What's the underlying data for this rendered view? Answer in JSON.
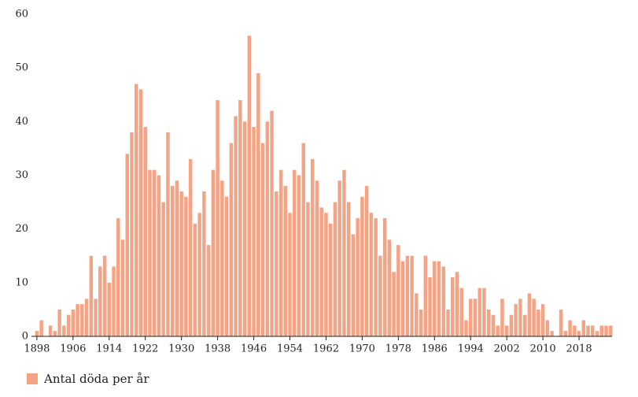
{
  "chart_data": {
    "type": "bar",
    "x": [
      1898,
      1899,
      1900,
      1901,
      1902,
      1903,
      1904,
      1905,
      1906,
      1907,
      1908,
      1909,
      1910,
      1911,
      1912,
      1913,
      1914,
      1915,
      1916,
      1917,
      1918,
      1919,
      1920,
      1921,
      1922,
      1923,
      1924,
      1925,
      1926,
      1927,
      1928,
      1929,
      1930,
      1931,
      1932,
      1933,
      1934,
      1935,
      1936,
      1937,
      1938,
      1939,
      1940,
      1941,
      1942,
      1943,
      1944,
      1945,
      1946,
      1947,
      1948,
      1949,
      1950,
      1951,
      1952,
      1953,
      1954,
      1955,
      1956,
      1957,
      1958,
      1959,
      1960,
      1961,
      1962,
      1963,
      1964,
      1965,
      1966,
      1967,
      1968,
      1969,
      1970,
      1971,
      1972,
      1973,
      1974,
      1975,
      1976,
      1977,
      1978,
      1979,
      1980,
      1981,
      1982,
      1983,
      1984,
      1985,
      1986,
      1987,
      1988,
      1989,
      1990,
      1991,
      1992,
      1993,
      1994,
      1995,
      1996,
      1997,
      1998,
      1999,
      2000,
      2001,
      2002,
      2003,
      2004,
      2005,
      2006,
      2007,
      2008,
      2009,
      2010,
      2011,
      2012,
      2013,
      2014,
      2015,
      2016,
      2017,
      2018,
      2019,
      2020,
      2021,
      2022,
      2023,
      2024,
      2025
    ],
    "series": [
      {
        "name": "Antal döda per år",
        "color": "#f4a485",
        "values": [
          1,
          3,
          0,
          2,
          1,
          5,
          2,
          4,
          5,
          6,
          6,
          7,
          15,
          7,
          13,
          15,
          10,
          13,
          22,
          18,
          34,
          38,
          47,
          46,
          39,
          31,
          31,
          30,
          25,
          38,
          28,
          29,
          27,
          26,
          33,
          21,
          23,
          27,
          17,
          31,
          44,
          29,
          26,
          36,
          41,
          44,
          40,
          56,
          39,
          49,
          36,
          40,
          42,
          27,
          31,
          28,
          23,
          31,
          30,
          36,
          25,
          33,
          29,
          24,
          23,
          21,
          25,
          29,
          31,
          25,
          19,
          22,
          26,
          28,
          23,
          22,
          15,
          22,
          18,
          12,
          17,
          14,
          15,
          15,
          8,
          5,
          15,
          11,
          14,
          14,
          13,
          5,
          11,
          12,
          9,
          3,
          7,
          7,
          9,
          9,
          5,
          4,
          2,
          7,
          2,
          4,
          6,
          7,
          4,
          8,
          7,
          5,
          6,
          3,
          1,
          0,
          5,
          1,
          3,
          2,
          1,
          3,
          2,
          2,
          1,
          2,
          2,
          2
        ]
      }
    ],
    "xlim": [
      1896.8,
      2025.3
    ],
    "xticks": [
      1898,
      1906,
      1914,
      1922,
      1930,
      1938,
      1946,
      1954,
      1962,
      1970,
      1978,
      1986,
      1994,
      2002,
      2010,
      2018
    ],
    "ylim": [
      0,
      60
    ],
    "yticks": [
      0,
      10,
      20,
      30,
      40,
      50,
      60
    ]
  }
}
